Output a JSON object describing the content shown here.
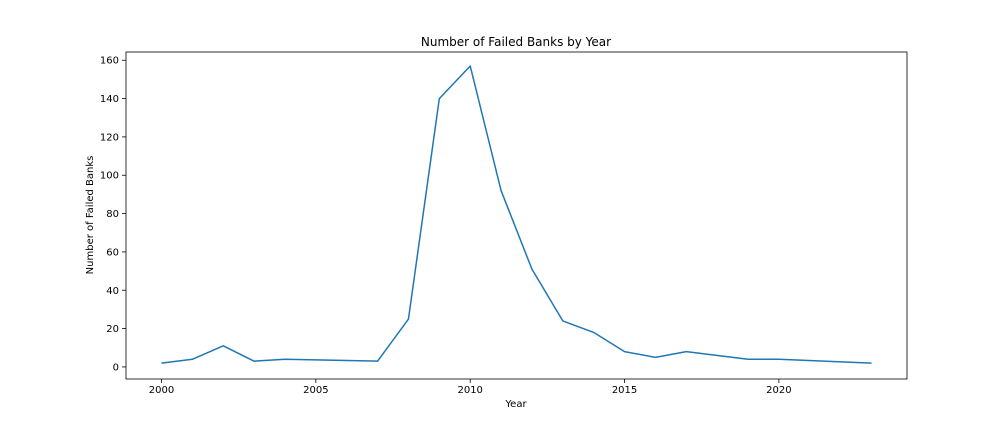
{
  "chart_data": {
    "type": "line",
    "title": "Number of Failed Banks by Year",
    "xlabel": "Year",
    "ylabel": "Number of Failed Banks",
    "xlim": [
      1998.85,
      2024.15
    ],
    "ylim": [
      -6.3,
      164.3
    ],
    "xticks": [
      2000,
      2005,
      2010,
      2015,
      2020
    ],
    "yticks": [
      0,
      20,
      40,
      60,
      80,
      100,
      120,
      140,
      160
    ],
    "grid": false,
    "legend": "none",
    "series": [
      {
        "color": "#1f77b4",
        "x": [
          2000,
          2001,
          2002,
          2003,
          2004,
          2007,
          2008,
          2009,
          2010,
          2011,
          2012,
          2013,
          2014,
          2015,
          2016,
          2017,
          2019,
          2020,
          2023
        ],
        "y": [
          2,
          4,
          11,
          3,
          4,
          3,
          25,
          140,
          157,
          92,
          51,
          24,
          18,
          8,
          5,
          8,
          4,
          4,
          2
        ]
      }
    ]
  }
}
